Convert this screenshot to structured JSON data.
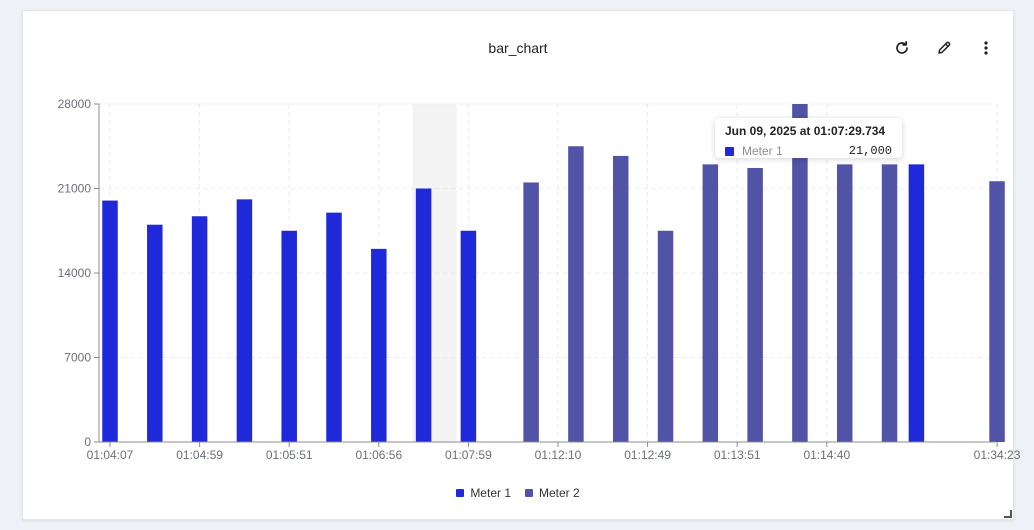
{
  "panel": {
    "title": "bar_chart",
    "icons": {
      "refresh": "refresh-icon",
      "edit": "pencil-icon",
      "menu": "vertical-dots-icon"
    }
  },
  "tooltip": {
    "time": "Jun 09, 2025 at 01:07:29.734",
    "series": "Meter 1",
    "value": "21,000"
  },
  "colors": {
    "meter1": "#2029d9",
    "meter2": "#5053a6",
    "highlight": "#f3f3f4",
    "grid": "#e7e9ec",
    "axis": "#888c92"
  },
  "chart_data": {
    "type": "bar",
    "ylim": [
      0,
      28000
    ],
    "yticks": [
      "0",
      "7000",
      "14000",
      "21000",
      "28000"
    ],
    "xticks": [
      {
        "label": "01:04:07",
        "at": 0
      },
      {
        "label": "01:04:59",
        "at": 2
      },
      {
        "label": "01:05:51",
        "at": 4
      },
      {
        "label": "01:06:56",
        "at": 6
      },
      {
        "label": "01:07:59",
        "at": 8
      },
      {
        "label": "01:12:10",
        "at": 10
      },
      {
        "label": "01:12:49",
        "at": 12
      },
      {
        "label": "01:13:51",
        "at": 14
      },
      {
        "label": "01:14:40",
        "at": 16
      },
      {
        "label": "01:34:23",
        "at": 19.8
      }
    ],
    "series": [
      {
        "name": "Meter 1",
        "points": [
          {
            "slot": 0,
            "y": 20000
          },
          {
            "slot": 1,
            "y": 18000
          },
          {
            "slot": 2,
            "y": 18700
          },
          {
            "slot": 3,
            "y": 20100
          },
          {
            "slot": 4,
            "y": 17500
          },
          {
            "slot": 5,
            "y": 19000
          },
          {
            "slot": 6,
            "y": 16000
          },
          {
            "slot": 7,
            "y": 21000
          },
          {
            "slot": 8,
            "y": 17500
          },
          {
            "slot": 18,
            "y": 23000
          }
        ]
      },
      {
        "name": "Meter 2",
        "points": [
          {
            "slot": 9.4,
            "y": 21500
          },
          {
            "slot": 10.4,
            "y": 24500
          },
          {
            "slot": 11.4,
            "y": 23700
          },
          {
            "slot": 12.4,
            "y": 17500
          },
          {
            "slot": 13.4,
            "y": 23000
          },
          {
            "slot": 14.4,
            "y": 22700
          },
          {
            "slot": 15.4,
            "y": 28000
          },
          {
            "slot": 16.4,
            "y": 23000
          },
          {
            "slot": 17.4,
            "y": 23000
          },
          {
            "slot": 19.8,
            "y": 21600
          }
        ]
      }
    ],
    "highlight_slot": 7,
    "grid": true,
    "legend": "bottom-center"
  }
}
